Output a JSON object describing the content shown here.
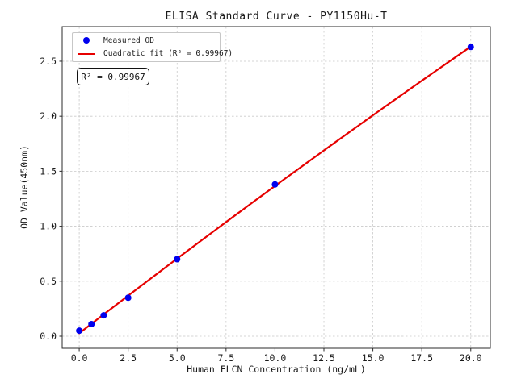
{
  "chart_data": {
    "type": "scatter",
    "title": "ELISA Standard Curve - PY1150Hu-T",
    "xlabel": "Human FLCN Concentration (ng/mL)",
    "ylabel": "OD Value(450nm)",
    "x": [
      0,
      0.625,
      1.25,
      2.5,
      5,
      10,
      20
    ],
    "y": [
      0.05,
      0.11,
      0.19,
      0.35,
      0.7,
      1.38,
      2.63
    ],
    "series": [
      {
        "name": "Measured OD",
        "type": "scatter",
        "color": "#0000ee"
      },
      {
        "name": "Quadratic fit",
        "type": "line",
        "color": "#e60000",
        "r_squared": 0.99967
      }
    ],
    "xtick_values": [
      0,
      2.5,
      5,
      7.5,
      10,
      12.5,
      15,
      17.5,
      20
    ],
    "xtick_labels": [
      "0.0",
      "2.5",
      "5.0",
      "7.5",
      "10.0",
      "12.5",
      "15.0",
      "17.5",
      "20.0"
    ],
    "ytick_values": [
      0,
      0.5,
      1,
      1.5,
      2,
      2.5
    ],
    "ytick_labels": [
      "0.0",
      "0.5",
      "1.0",
      "1.5",
      "2.0",
      "2.5"
    ],
    "xlim": [
      -0.87,
      21.0
    ],
    "ylim": [
      -0.11,
      2.815
    ],
    "grid": true,
    "legend": {
      "position": "upper-left",
      "entries": [
        {
          "label": "Measured OD",
          "marker": "circle",
          "color": "#0000ee"
        },
        {
          "label": "Quadratic fit (R² = 0.99967)",
          "marker": "line",
          "color": "#e60000"
        }
      ]
    },
    "annotation": {
      "text": "R² = 0.99967"
    },
    "colors": {
      "marker": "#0000ee",
      "fit_line": "#e60000",
      "grid": "#c9c9c9",
      "spine": "#2b2b2b",
      "text": "#1a1a1a"
    }
  }
}
